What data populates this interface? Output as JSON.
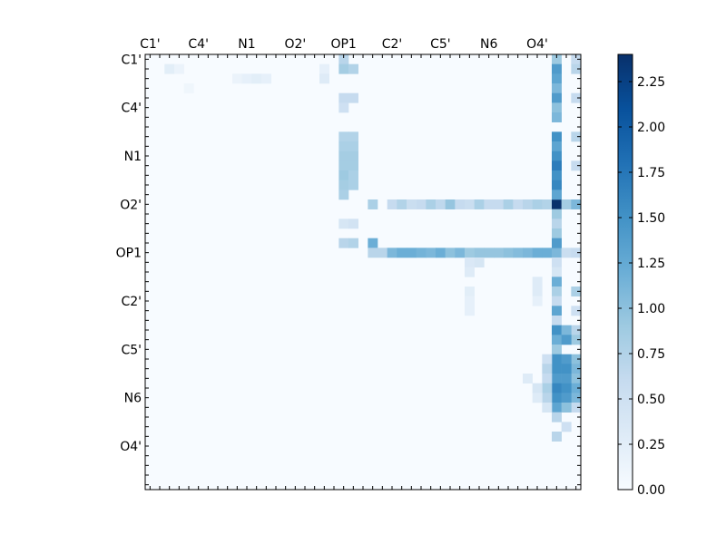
{
  "chart_data": {
    "type": "heatmap",
    "title": "",
    "xlabel": "",
    "ylabel": "",
    "n_rows": 45,
    "n_cols": 45,
    "labelled_indices": [
      0,
      5,
      10,
      15,
      20,
      25,
      30,
      35,
      40
    ],
    "x_tick_labels": [
      "C1'",
      "C4'",
      "N1",
      "O2'",
      "OP1",
      "C2'",
      "C5'",
      "N6",
      "O4'"
    ],
    "y_tick_labels": [
      "C1'",
      "C4'",
      "N1",
      "O2'",
      "OP1",
      "C2'",
      "C5'",
      "N6",
      "O4'"
    ],
    "colormap": "Blues",
    "vmin": 0.0,
    "vmax": 2.4,
    "colorbar_ticks": [
      "0.00",
      "0.25",
      "0.50",
      "0.75",
      "1.00",
      "1.25",
      "1.50",
      "1.75",
      "2.00",
      "2.25"
    ],
    "colorbar_tick_values": [
      0.0,
      0.25,
      0.5,
      0.75,
      1.0,
      1.25,
      1.5,
      1.75,
      2.0,
      2.25
    ],
    "values_note_empty": "",
    "cells": [
      {
        "row": 1,
        "col": 2,
        "v": 0.25
      },
      {
        "row": 1,
        "col": 3,
        "v": 0.15
      },
      {
        "row": 0,
        "col": 20,
        "v": 0.7
      },
      {
        "row": 1,
        "col": 20,
        "v": 0.85
      },
      {
        "row": 1,
        "col": 21,
        "v": 0.75
      },
      {
        "row": 1,
        "col": 18,
        "v": 0.2
      },
      {
        "row": 2,
        "col": 18,
        "v": 0.3
      },
      {
        "row": 2,
        "col": 9,
        "v": 0.15
      },
      {
        "row": 2,
        "col": 10,
        "v": 0.2
      },
      {
        "row": 2,
        "col": 11,
        "v": 0.25
      },
      {
        "row": 2,
        "col": 12,
        "v": 0.2
      },
      {
        "row": 3,
        "col": 4,
        "v": 0.1
      },
      {
        "row": 4,
        "col": 20,
        "v": 0.6
      },
      {
        "row": 5,
        "col": 20,
        "v": 0.5
      },
      {
        "row": 4,
        "col": 21,
        "v": 0.6
      },
      {
        "row": 8,
        "col": 20,
        "v": 0.75
      },
      {
        "row": 9,
        "col": 20,
        "v": 0.8
      },
      {
        "row": 10,
        "col": 20,
        "v": 0.85
      },
      {
        "row": 11,
        "col": 20,
        "v": 0.85
      },
      {
        "row": 12,
        "col": 20,
        "v": 0.9
      },
      {
        "row": 13,
        "col": 20,
        "v": 0.85
      },
      {
        "row": 14,
        "col": 20,
        "v": 0.8
      },
      {
        "row": 8,
        "col": 21,
        "v": 0.75
      },
      {
        "row": 9,
        "col": 21,
        "v": 0.8
      },
      {
        "row": 10,
        "col": 21,
        "v": 0.85
      },
      {
        "row": 11,
        "col": 21,
        "v": 0.85
      },
      {
        "row": 12,
        "col": 21,
        "v": 0.8
      },
      {
        "row": 13,
        "col": 21,
        "v": 0.8
      },
      {
        "row": 15,
        "col": 23,
        "v": 0.8
      },
      {
        "row": 15,
        "col": 25,
        "v": 0.6
      },
      {
        "row": 15,
        "col": 26,
        "v": 0.75
      },
      {
        "row": 15,
        "col": 27,
        "v": 0.55
      },
      {
        "row": 15,
        "col": 28,
        "v": 0.6
      },
      {
        "row": 15,
        "col": 29,
        "v": 0.8
      },
      {
        "row": 15,
        "col": 30,
        "v": 0.65
      },
      {
        "row": 15,
        "col": 31,
        "v": 0.95
      },
      {
        "row": 15,
        "col": 32,
        "v": 0.6
      },
      {
        "row": 15,
        "col": 33,
        "v": 0.55
      },
      {
        "row": 15,
        "col": 34,
        "v": 0.8
      },
      {
        "row": 15,
        "col": 35,
        "v": 0.6
      },
      {
        "row": 15,
        "col": 36,
        "v": 0.6
      },
      {
        "row": 15,
        "col": 37,
        "v": 0.8
      },
      {
        "row": 15,
        "col": 38,
        "v": 0.6
      },
      {
        "row": 15,
        "col": 39,
        "v": 0.7
      },
      {
        "row": 15,
        "col": 40,
        "v": 0.8
      },
      {
        "row": 15,
        "col": 41,
        "v": 0.75
      },
      {
        "row": 15,
        "col": 42,
        "v": 2.4
      },
      {
        "row": 15,
        "col": 43,
        "v": 0.85
      },
      {
        "row": 19,
        "col": 23,
        "v": 1.2
      },
      {
        "row": 20,
        "col": 23,
        "v": 0.7
      },
      {
        "row": 20,
        "col": 24,
        "v": 0.7
      },
      {
        "row": 20,
        "col": 25,
        "v": 1.1
      },
      {
        "row": 20,
        "col": 26,
        "v": 1.2
      },
      {
        "row": 20,
        "col": 27,
        "v": 1.2
      },
      {
        "row": 20,
        "col": 28,
        "v": 1.15
      },
      {
        "row": 20,
        "col": 29,
        "v": 1.1
      },
      {
        "row": 20,
        "col": 30,
        "v": 1.2
      },
      {
        "row": 20,
        "col": 31,
        "v": 1.0
      },
      {
        "row": 20,
        "col": 32,
        "v": 1.1
      },
      {
        "row": 20,
        "col": 33,
        "v": 0.9
      },
      {
        "row": 20,
        "col": 34,
        "v": 0.95
      },
      {
        "row": 20,
        "col": 35,
        "v": 0.95
      },
      {
        "row": 20,
        "col": 36,
        "v": 0.95
      },
      {
        "row": 20,
        "col": 37,
        "v": 1.0
      },
      {
        "row": 20,
        "col": 38,
        "v": 1.05
      },
      {
        "row": 20,
        "col": 39,
        "v": 1.1
      },
      {
        "row": 20,
        "col": 40,
        "v": 1.2
      },
      {
        "row": 20,
        "col": 41,
        "v": 1.2
      },
      {
        "row": 20,
        "col": 42,
        "v": 1.1
      },
      {
        "row": 20,
        "col": 43,
        "v": 0.55
      },
      {
        "row": 19,
        "col": 20,
        "v": 0.7
      },
      {
        "row": 19,
        "col": 21,
        "v": 0.75
      },
      {
        "row": 17,
        "col": 20,
        "v": 0.4
      },
      {
        "row": 17,
        "col": 21,
        "v": 0.45
      },
      {
        "row": 0,
        "col": 42,
        "v": 0.9
      },
      {
        "row": 1,
        "col": 42,
        "v": 1.4
      },
      {
        "row": 2,
        "col": 42,
        "v": 1.3
      },
      {
        "row": 3,
        "col": 42,
        "v": 1.1
      },
      {
        "row": 4,
        "col": 42,
        "v": 1.4
      },
      {
        "row": 5,
        "col": 42,
        "v": 1.0
      },
      {
        "row": 6,
        "col": 42,
        "v": 1.1
      },
      {
        "row": 8,
        "col": 42,
        "v": 1.5
      },
      {
        "row": 9,
        "col": 42,
        "v": 1.3
      },
      {
        "row": 10,
        "col": 42,
        "v": 1.5
      },
      {
        "row": 11,
        "col": 42,
        "v": 1.7
      },
      {
        "row": 12,
        "col": 42,
        "v": 1.5
      },
      {
        "row": 13,
        "col": 42,
        "v": 1.6
      },
      {
        "row": 14,
        "col": 42,
        "v": 1.3
      },
      {
        "row": 16,
        "col": 42,
        "v": 0.9
      },
      {
        "row": 17,
        "col": 42,
        "v": 0.7
      },
      {
        "row": 18,
        "col": 42,
        "v": 0.9
      },
      {
        "row": 19,
        "col": 42,
        "v": 1.4
      },
      {
        "row": 21,
        "col": 42,
        "v": 0.5
      },
      {
        "row": 22,
        "col": 42,
        "v": 0.4
      },
      {
        "row": 23,
        "col": 42,
        "v": 1.2
      },
      {
        "row": 24,
        "col": 42,
        "v": 0.8
      },
      {
        "row": 25,
        "col": 42,
        "v": 0.6
      },
      {
        "row": 26,
        "col": 42,
        "v": 1.3
      },
      {
        "row": 27,
        "col": 42,
        "v": 0.6
      },
      {
        "row": 28,
        "col": 42,
        "v": 1.5
      },
      {
        "row": 29,
        "col": 42,
        "v": 1.2
      },
      {
        "row": 30,
        "col": 42,
        "v": 0.9
      },
      {
        "row": 31,
        "col": 42,
        "v": 1.5
      },
      {
        "row": 32,
        "col": 42,
        "v": 1.5
      },
      {
        "row": 33,
        "col": 42,
        "v": 1.4
      },
      {
        "row": 34,
        "col": 42,
        "v": 1.6
      },
      {
        "row": 35,
        "col": 42,
        "v": 1.5
      },
      {
        "row": 36,
        "col": 42,
        "v": 1.3
      },
      {
        "row": 37,
        "col": 42,
        "v": 0.7
      },
      {
        "row": 39,
        "col": 42,
        "v": 0.7
      },
      {
        "row": 0,
        "col": 44,
        "v": 0.6
      },
      {
        "row": 1,
        "col": 44,
        "v": 0.7
      },
      {
        "row": 4,
        "col": 44,
        "v": 0.6
      },
      {
        "row": 8,
        "col": 44,
        "v": 0.7
      },
      {
        "row": 11,
        "col": 44,
        "v": 0.6
      },
      {
        "row": 15,
        "col": 44,
        "v": 1.1
      },
      {
        "row": 20,
        "col": 44,
        "v": 0.6
      },
      {
        "row": 24,
        "col": 44,
        "v": 0.8
      },
      {
        "row": 26,
        "col": 44,
        "v": 0.5
      },
      {
        "row": 28,
        "col": 44,
        "v": 0.7
      },
      {
        "row": 29,
        "col": 44,
        "v": 0.9
      },
      {
        "row": 31,
        "col": 44,
        "v": 1.0
      },
      {
        "row": 32,
        "col": 44,
        "v": 1.1
      },
      {
        "row": 33,
        "col": 44,
        "v": 1.0
      },
      {
        "row": 34,
        "col": 44,
        "v": 1.2
      },
      {
        "row": 35,
        "col": 44,
        "v": 1.1
      },
      {
        "row": 36,
        "col": 44,
        "v": 0.6
      },
      {
        "row": 28,
        "col": 43,
        "v": 1.1
      },
      {
        "row": 29,
        "col": 43,
        "v": 1.4
      },
      {
        "row": 31,
        "col": 43,
        "v": 1.4
      },
      {
        "row": 32,
        "col": 43,
        "v": 1.5
      },
      {
        "row": 33,
        "col": 43,
        "v": 1.4
      },
      {
        "row": 34,
        "col": 43,
        "v": 1.5
      },
      {
        "row": 35,
        "col": 43,
        "v": 1.4
      },
      {
        "row": 36,
        "col": 43,
        "v": 1.0
      },
      {
        "row": 38,
        "col": 43,
        "v": 0.5
      },
      {
        "row": 31,
        "col": 41,
        "v": 0.5
      },
      {
        "row": 32,
        "col": 41,
        "v": 0.7
      },
      {
        "row": 33,
        "col": 41,
        "v": 0.6
      },
      {
        "row": 34,
        "col": 41,
        "v": 0.8
      },
      {
        "row": 35,
        "col": 41,
        "v": 0.7
      },
      {
        "row": 36,
        "col": 41,
        "v": 0.4
      },
      {
        "row": 33,
        "col": 39,
        "v": 0.3
      },
      {
        "row": 34,
        "col": 40,
        "v": 0.4
      },
      {
        "row": 35,
        "col": 40,
        "v": 0.3
      },
      {
        "row": 23,
        "col": 40,
        "v": 0.3
      },
      {
        "row": 24,
        "col": 40,
        "v": 0.3
      },
      {
        "row": 25,
        "col": 40,
        "v": 0.2
      },
      {
        "row": 21,
        "col": 33,
        "v": 0.35
      },
      {
        "row": 21,
        "col": 34,
        "v": 0.4
      },
      {
        "row": 22,
        "col": 33,
        "v": 0.3
      },
      {
        "row": 24,
        "col": 33,
        "v": 0.25
      },
      {
        "row": 25,
        "col": 33,
        "v": 0.2
      },
      {
        "row": 26,
        "col": 33,
        "v": 0.2
      }
    ]
  }
}
